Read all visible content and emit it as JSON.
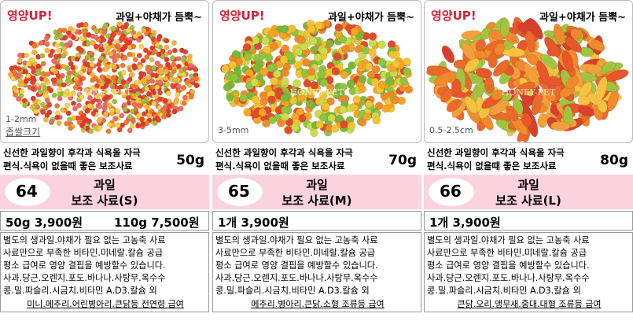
{
  "products": [
    {
      "badge": "영양UP!",
      "headline": "과일+야채가 듬뿍~",
      "watermark": "HONEY-PET",
      "size": [
        "1-2mm",
        "좁쌀크기"
      ],
      "tagline": [
        "신선한 과일향이 후각과 식욕을 자극",
        "편식.식욕이 없을때 좋은 보조사료"
      ],
      "weight": "50g",
      "number": "64",
      "name": [
        "과일",
        "보조 사료(S)"
      ],
      "prices": [
        "50g 3,900원",
        "110g 7,500원"
      ],
      "description": [
        "별도의 생과일.야채가 필요 없는 고농축 사료",
        "사료만으로 부족한 비타민.미네랄.칼슘 공급",
        "평소 급여로 영양 결핍을 예방할수 있습니다.",
        "사과.당근.오렌지.포도.바나나.사탕무.옥수수",
        "콩.밀.파슬리.시금치.비타민 A.D3.칼슘 외"
      ],
      "footer": "미니.메추리.어린병아리.큰닭등 전연령 급여"
    },
    {
      "badge": "영양UP!",
      "headline": "과일+야채가 듬뿍~",
      "watermark": "HONEY-PET",
      "size": [
        "3-5mm"
      ],
      "tagline": [
        "신선한 과일향이 후각과 식욕을 자극",
        "편식.식욕이 없을때 좋은 보조사료"
      ],
      "weight": "70g",
      "number": "65",
      "name": [
        "과일",
        "보조 사료(M)"
      ],
      "prices": [
        "1개 3,900원"
      ],
      "description": [
        "별도의 생과일.야채가 필요 없는 고농축 사료",
        "사료만으로 부족한 비타민.미네랄.칼슘 공급",
        "평소 급여로 영양 결핍을 예방할수 있습니다.",
        "사과.당근.오렌지.포도.바나나.사탕무.옥수수",
        "콩.밀.파슬리.시금치.비타민 A.D3.칼슘 외"
      ],
      "footer": "메추리.병아리.큰닭.소형 조류등 급여"
    },
    {
      "badge": "영양UP!",
      "headline": "과일+야채가 듬뿍~",
      "watermark": "HONEY-PET",
      "size": [
        "0.5-2.5cm"
      ],
      "tagline": [
        "신선한 과일향이 후각과 식욕을 자극",
        "편식.식욕이 없을때 좋은 보조사료"
      ],
      "weight": "80g",
      "number": "66",
      "name": [
        "과일",
        "보조 사료(L)"
      ],
      "prices": [
        "1개 3,900원"
      ],
      "description": [
        "별도의 생과일.야채가 필요 없는 고농축 사료",
        "사료만으로 부족한 비타민.미네랄.칼슘 공급",
        "평소 급여로 영양 결핍을 예방할수 있습니다.",
        "사과.당근.오렌지.포도.바나나.사탕무.옥수수",
        "콩.밀.파슬리.시금치.비타민 A.D3.칼슘 외"
      ],
      "footer": "큰닭.오리.앵무새.중대.대형 조류등 급여"
    }
  ]
}
